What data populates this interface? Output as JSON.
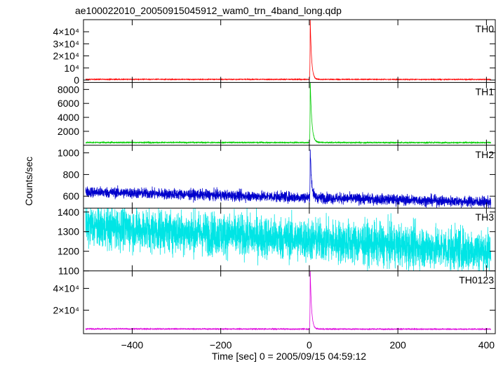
{
  "chart_data": {
    "type": "line",
    "title": "ae100022010_20050915045912_wam0_trn_4band_long.qdp",
    "xlabel": "Time [sec] 0 = 2005/09/15 04:59:12",
    "ylabel": "Counts/sec",
    "xlim": [
      -510,
      420
    ],
    "x_ticks": [
      {
        "value": -400,
        "label": "−400"
      },
      {
        "value": -200,
        "label": "−200"
      },
      {
        "value": 0,
        "label": "0"
      },
      {
        "value": 200,
        "label": "200"
      },
      {
        "value": 400,
        "label": "400"
      }
    ],
    "panels": [
      {
        "name": "TH0",
        "color": "#ff0000",
        "ylim": [
          -2000,
          50000
        ],
        "y_ticks": [
          {
            "value": 0,
            "label": "0"
          },
          {
            "value": 10000,
            "label": "10⁴"
          },
          {
            "value": 20000,
            "label": "2×10⁴"
          },
          {
            "value": 30000,
            "label": "3×10⁴"
          },
          {
            "value": 40000,
            "label": "4×10⁴"
          }
        ],
        "baseline_start": 600,
        "baseline_end": 500,
        "noise": 150,
        "peak_time": 2,
        "peak": 52000,
        "decay": 3
      },
      {
        "name": "TH1",
        "color": "#00cc00",
        "ylim": [
          0,
          9000
        ],
        "y_ticks": [
          {
            "value": 2000,
            "label": "2000"
          },
          {
            "value": 4000,
            "label": "4000"
          },
          {
            "value": 6000,
            "label": "6000"
          },
          {
            "value": 8000,
            "label": "8000"
          }
        ],
        "baseline_start": 400,
        "baseline_end": 380,
        "noise": 40,
        "peak_time": 2,
        "peak": 9500,
        "decay": 3.5
      },
      {
        "name": "TH2",
        "color": "#0000cc",
        "ylim": [
          490,
          1070
        ],
        "y_ticks": [
          {
            "value": 600,
            "label": "600"
          },
          {
            "value": 800,
            "label": "800"
          },
          {
            "value": 1000,
            "label": "1000"
          }
        ],
        "baseline_start": 640,
        "baseline_end": 545,
        "noise": 25,
        "peak_time": 2,
        "peak": 1050,
        "decay": 3
      },
      {
        "name": "TH3",
        "color": "#00e5e5",
        "ylim": [
          1100,
          1420
        ],
        "y_ticks": [
          {
            "value": 1100,
            "label": "1100"
          },
          {
            "value": 1200,
            "label": "1200"
          },
          {
            "value": 1300,
            "label": "1300"
          },
          {
            "value": 1400,
            "label": "1400"
          }
        ],
        "baseline_start": 1330,
        "baseline_end": 1200,
        "noise": 55,
        "peak_time": 2,
        "peak": 0,
        "decay": 3
      },
      {
        "name": "TH0123",
        "color": "#dd00dd",
        "ylim": [
          -1500,
          56000
        ],
        "y_ticks": [
          {
            "value": 20000,
            "label": "2×10⁴"
          },
          {
            "value": 40000,
            "label": "4×10⁴"
          }
        ],
        "baseline_start": 2900,
        "baseline_end": 2650,
        "noise": 200,
        "peak_time": 2,
        "peak": 58000,
        "decay": 3
      }
    ]
  }
}
